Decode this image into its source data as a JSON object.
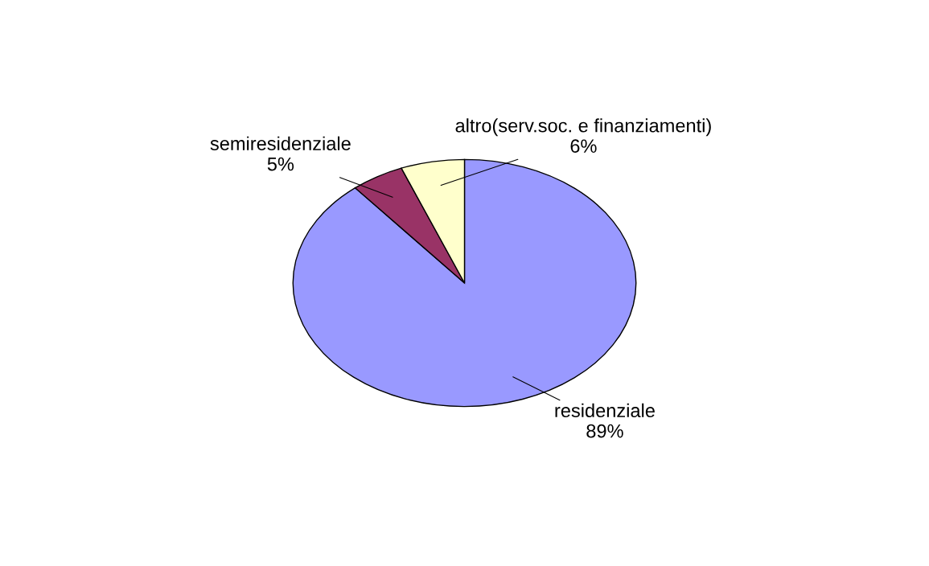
{
  "chart_data": {
    "type": "pie",
    "categories": [
      "residenziale",
      "semiresidenziale",
      "altro(serv.soc. e finanziamenti)"
    ],
    "values": [
      89,
      5,
      6
    ],
    "colors": [
      "#9999ff",
      "#993366",
      "#ffffcc"
    ],
    "value_labels": [
      "89%",
      "5%",
      "6%"
    ],
    "legend": false
  }
}
